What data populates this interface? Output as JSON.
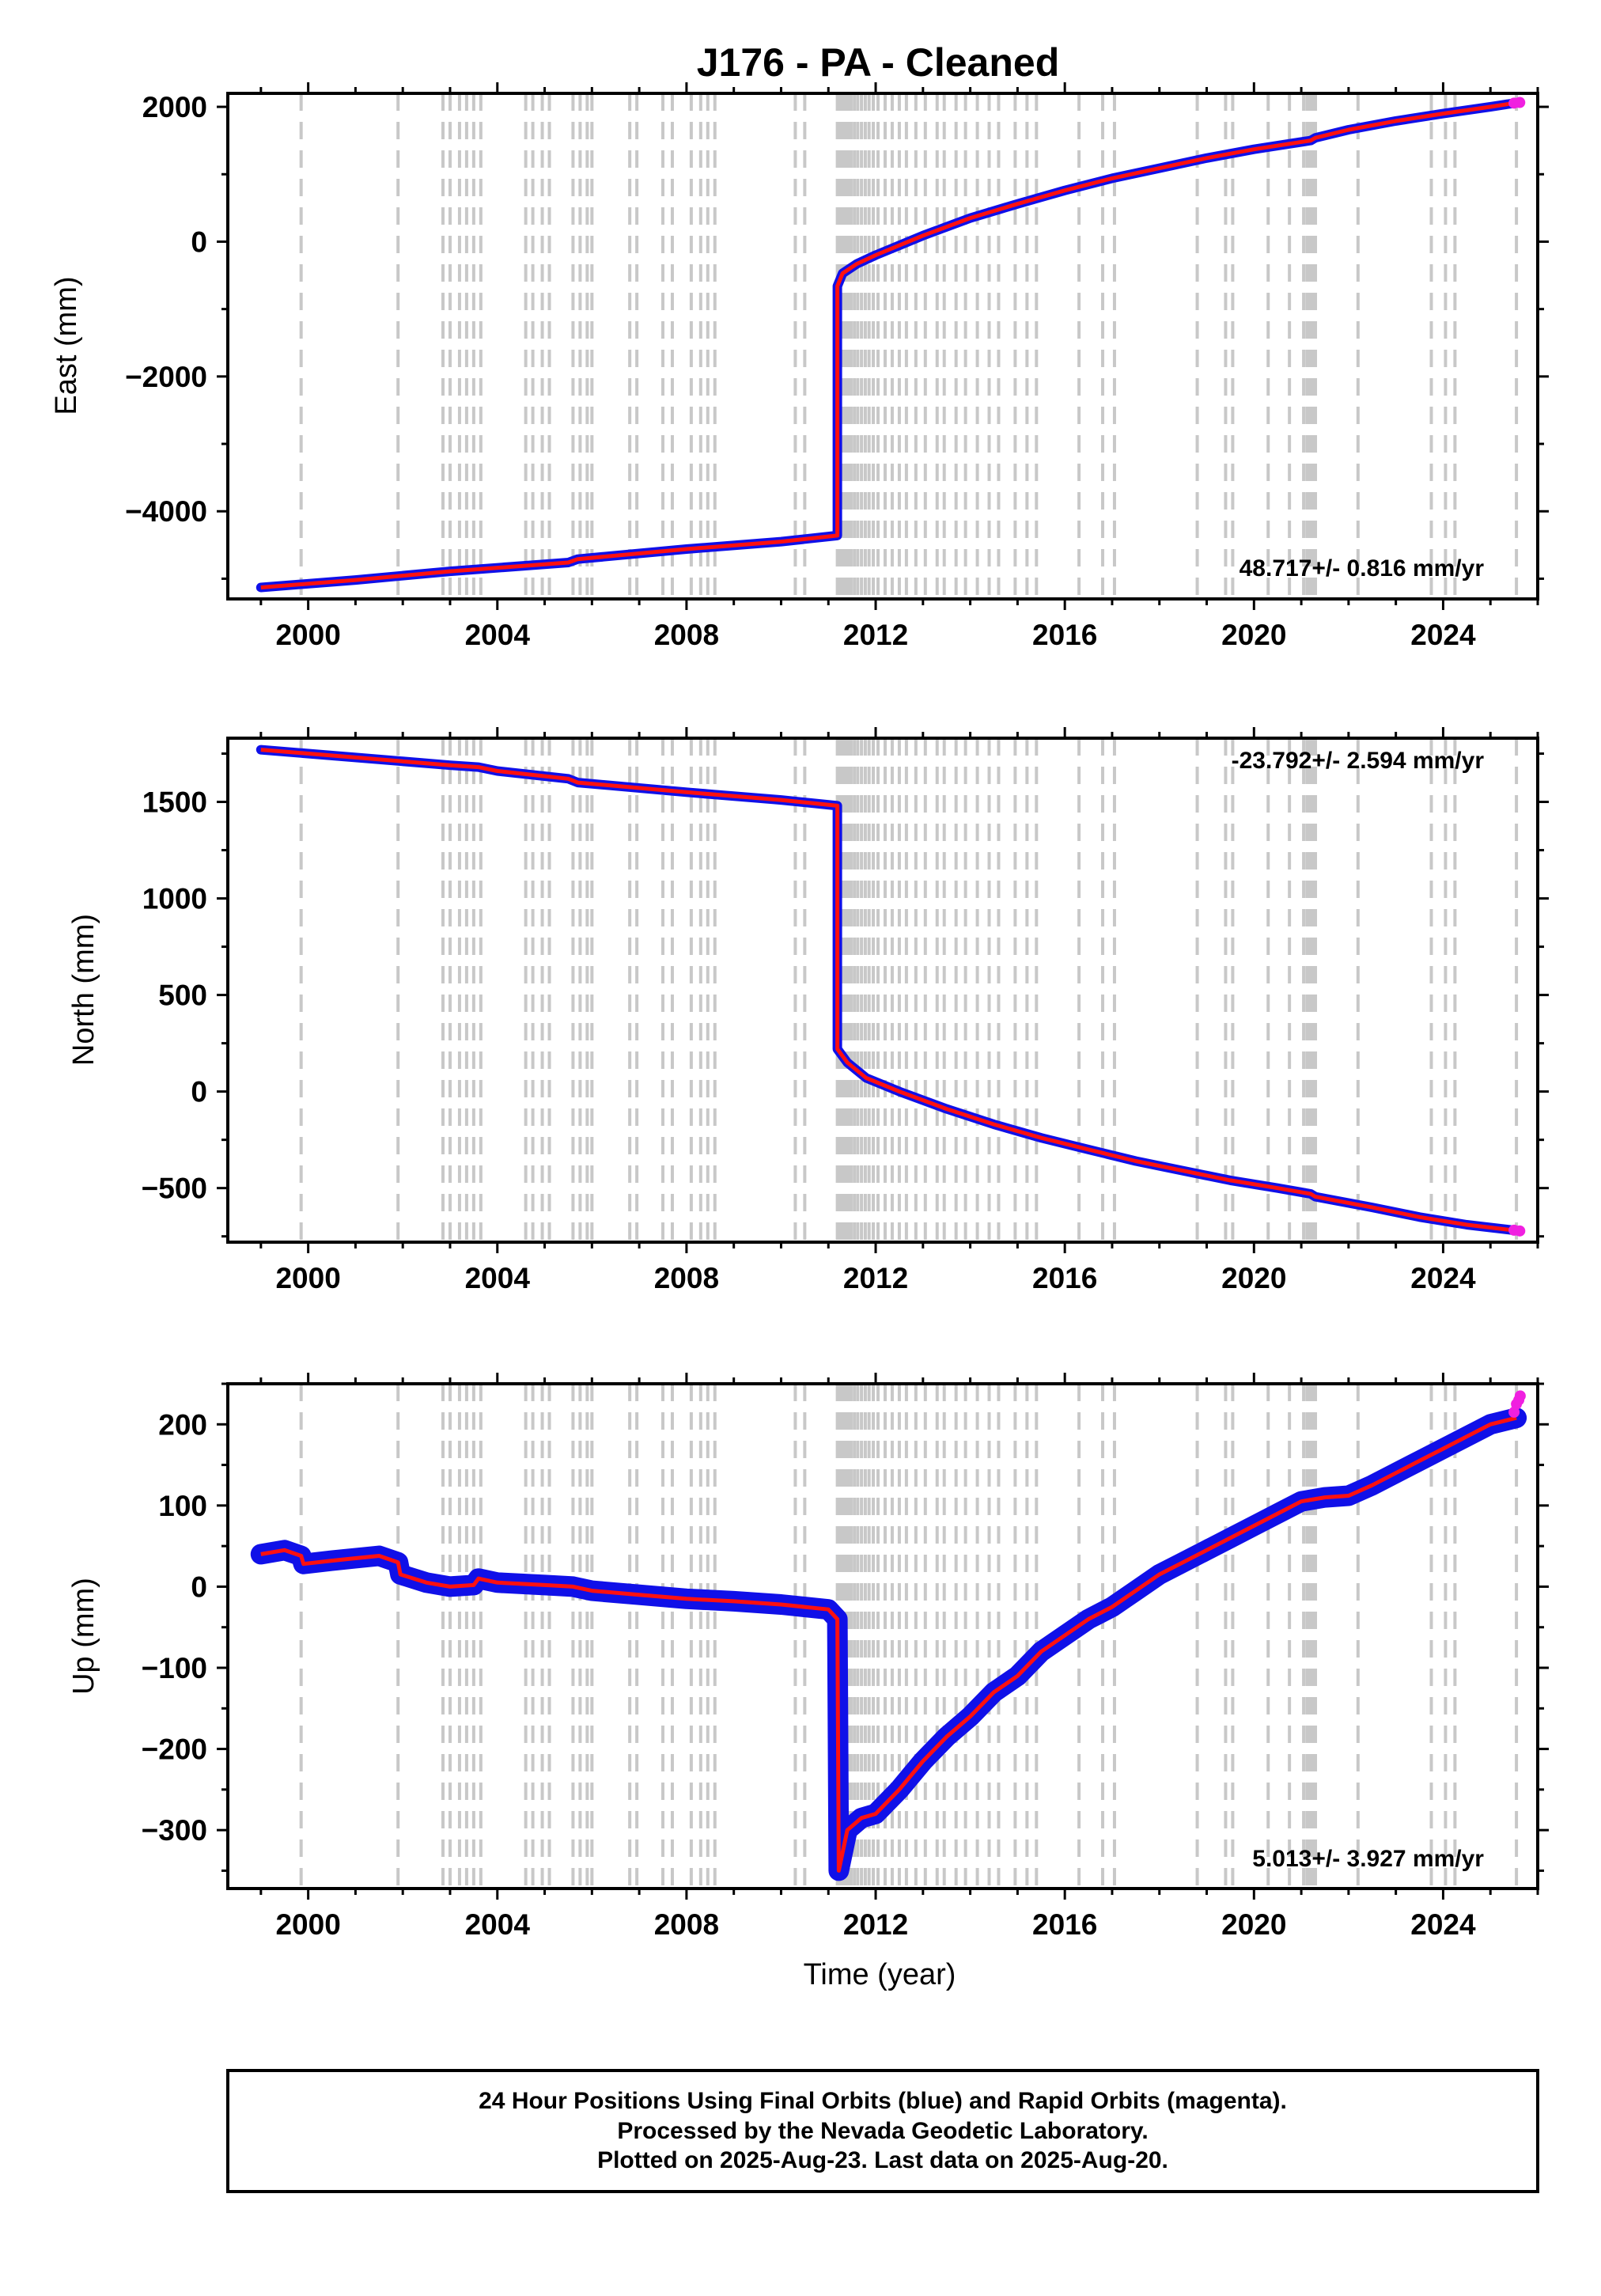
{
  "title": "J176  - PA - Cleaned",
  "xlabel": "Time (year)",
  "colors": {
    "final": "#1010e8",
    "rapid": "#f020e0",
    "model": "#ff1010",
    "event": "#c8c8c8"
  },
  "footer": {
    "line1": "24 Hour Positions Using Final Orbits (blue) and Rapid Orbits (magenta).",
    "line2": "Processed by the Nevada Geodetic Laboratory.",
    "line3": "Plotted on 2025-Aug-23. Last data on 2025-Aug-20."
  },
  "chart_data": [
    {
      "type": "scatter",
      "ylabel": "East (mm)",
      "rate_label": "48.717+/- 0.816 mm/yr",
      "xlim": [
        1998.3,
        2026.0
      ],
      "ylim": [
        -5300,
        2200
      ],
      "xticks": [
        2000,
        2004,
        2008,
        2012,
        2016,
        2020,
        2024
      ],
      "yticks": [
        -4000,
        -2000,
        0,
        2000
      ],
      "grid": false,
      "series": [
        {
          "name": "Final Orbits",
          "x": [
            1999.0,
            2001.0,
            2003.0,
            2005.5,
            2005.7,
            2008.0,
            2010.0,
            2011.19,
            2011.19,
            2011.3,
            2011.6,
            2012.0,
            2013.0,
            2014.0,
            2015.0,
            2016.0,
            2017.0,
            2018.0,
            2019.0,
            2020.0,
            2021.2,
            2021.3,
            2022.0,
            2023.0,
            2024.0,
            2025.0,
            2025.55
          ],
          "y": [
            -5130,
            -5020,
            -4890,
            -4760,
            -4710,
            -4560,
            -4450,
            -4360,
            -660,
            -470,
            -330,
            -200,
            90,
            350,
            560,
            760,
            940,
            1090,
            1240,
            1370,
            1500,
            1540,
            1660,
            1790,
            1900,
            2000,
            2060
          ]
        },
        {
          "name": "Rapid Orbits",
          "x": [
            2025.5,
            2025.62
          ],
          "y": [
            2055,
            2065
          ]
        }
      ]
    },
    {
      "type": "scatter",
      "ylabel": "North (mm)",
      "rate_label": "-23.792+/- 2.594 mm/yr",
      "xlim": [
        1998.3,
        2026.0
      ],
      "ylim": [
        -780,
        1830
      ],
      "xticks": [
        2000,
        2004,
        2008,
        2012,
        2016,
        2020,
        2024
      ],
      "yticks": [
        -500,
        0,
        500,
        1000,
        1500
      ],
      "grid": false,
      "series": [
        {
          "name": "Final Orbits",
          "x": [
            1999.0,
            2001.0,
            2003.0,
            2003.6,
            2004.0,
            2005.5,
            2005.7,
            2008.0,
            2008.5,
            2010.0,
            2011.19,
            2011.19,
            2011.4,
            2011.8,
            2012.5,
            2013.5,
            2014.5,
            2015.5,
            2016.5,
            2017.5,
            2018.5,
            2019.5,
            2020.5,
            2021.2,
            2021.3,
            2022.5,
            2023.5,
            2024.5,
            2025.55
          ],
          "y": [
            1770,
            1730,
            1690,
            1680,
            1660,
            1620,
            1600,
            1550,
            1540,
            1510,
            1480,
            220,
            150,
            70,
            0,
            -90,
            -170,
            -240,
            -300,
            -360,
            -410,
            -460,
            -500,
            -530,
            -545,
            -600,
            -650,
            -690,
            -720
          ]
        },
        {
          "name": "Rapid Orbits",
          "x": [
            2025.5,
            2025.62
          ],
          "y": [
            -718,
            -722
          ]
        }
      ]
    },
    {
      "type": "scatter",
      "ylabel": "Up (mm)",
      "rate_label": "5.013+/- 3.927 mm/yr",
      "xlim": [
        1998.3,
        2026.0
      ],
      "ylim": [
        -372,
        250
      ],
      "xticks": [
        2000,
        2004,
        2008,
        2012,
        2016,
        2020,
        2024
      ],
      "yticks": [
        -300,
        -200,
        -100,
        0,
        100,
        200
      ],
      "grid": false,
      "series": [
        {
          "name": "Final Orbits",
          "x": [
            1999.0,
            1999.5,
            1999.85,
            1999.9,
            2000.5,
            2001.0,
            2001.5,
            2001.9,
            2001.95,
            2002.5,
            2003.0,
            2003.5,
            2003.6,
            2004.0,
            2005.0,
            2005.6,
            2006.0,
            2007.0,
            2008.0,
            2009.0,
            2010.0,
            2011.0,
            2011.19,
            2011.22,
            2011.4,
            2011.7,
            2012.0,
            2012.5,
            2013.0,
            2013.5,
            2014.0,
            2014.5,
            2015.0,
            2015.5,
            2016.0,
            2016.5,
            2017.0,
            2017.5,
            2018.0,
            2018.5,
            2019.0,
            2019.5,
            2020.0,
            2020.5,
            2021.0,
            2021.5,
            2022.0,
            2022.5,
            2023.0,
            2023.5,
            2024.0,
            2024.5,
            2025.0,
            2025.55
          ],
          "y": [
            40,
            45,
            38,
            28,
            32,
            35,
            38,
            30,
            15,
            5,
            0,
            2,
            10,
            5,
            2,
            0,
            -5,
            -10,
            -15,
            -18,
            -22,
            -28,
            -40,
            -350,
            -300,
            -285,
            -280,
            -250,
            -215,
            -185,
            -160,
            -130,
            -110,
            -80,
            -60,
            -40,
            -25,
            -5,
            15,
            30,
            45,
            60,
            75,
            90,
            105,
            110,
            112,
            125,
            140,
            155,
            170,
            185,
            200,
            208
          ]
        },
        {
          "name": "Rapid Orbits",
          "x": [
            2025.5,
            2025.55,
            2025.6,
            2025.63
          ],
          "y": [
            215,
            225,
            230,
            235
          ]
        }
      ]
    }
  ],
  "events": [
    1999.85,
    2001.9,
    2002.85,
    2003.0,
    2003.2,
    2003.35,
    2003.5,
    2003.65,
    2004.6,
    2004.75,
    2004.95,
    2005.1,
    2005.6,
    2005.75,
    2005.9,
    2006.0,
    2006.8,
    2006.95,
    2007.5,
    2007.7,
    2008.1,
    2008.3,
    2008.45,
    2008.6,
    2010.3,
    2010.5,
    2011.19,
    2011.25,
    2011.3,
    2011.36,
    2011.42,
    2011.48,
    2011.55,
    2011.62,
    2011.7,
    2011.78,
    2011.86,
    2011.95,
    2012.05,
    2012.2,
    2012.35,
    2012.5,
    2012.65,
    2012.85,
    2013.05,
    2013.3,
    2013.45,
    2013.7,
    2013.9,
    2014.15,
    2014.4,
    2014.6,
    2014.95,
    2015.2,
    2015.4,
    2016.3,
    2016.8,
    2017.05,
    2018.8,
    2019.4,
    2019.55,
    2020.3,
    2020.75,
    2021.05,
    2021.12,
    2021.18,
    2021.24,
    2021.3,
    2022.2,
    2023.75,
    2024.05,
    2024.25,
    2025.55
  ]
}
